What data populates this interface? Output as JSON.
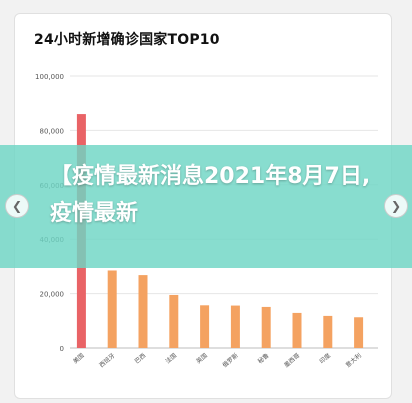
{
  "chart_data": {
    "type": "bar",
    "title": "24小时新增确诊国家TOP10",
    "categories": [
      "美国",
      "西班牙",
      "巴西",
      "法国",
      "英国",
      "俄罗斯",
      "秘鲁",
      "墨西哥",
      "印度",
      "意大利"
    ],
    "values": [
      86000,
      28500,
      26800,
      19500,
      15700,
      15600,
      15100,
      12900,
      11800,
      11300
    ],
    "ylim": [
      0,
      100000
    ],
    "yticks": [
      "0",
      "20,000",
      "40,000",
      "60,000",
      "80,000",
      "100,000"
    ],
    "ytick_values": [
      0,
      20000,
      40000,
      60000,
      80000,
      100000
    ],
    "grid": true,
    "colors": {
      "highlight": "#e96366",
      "bar": "#f4a261"
    }
  },
  "banner": {
    "text": "【疫情最新消息2021年8月7日,疫情最新"
  },
  "nav": {
    "left_icon": "chevron-left-icon",
    "right_icon": "chevron-right-icon",
    "left_glyph": "❮",
    "right_glyph": "❯"
  }
}
